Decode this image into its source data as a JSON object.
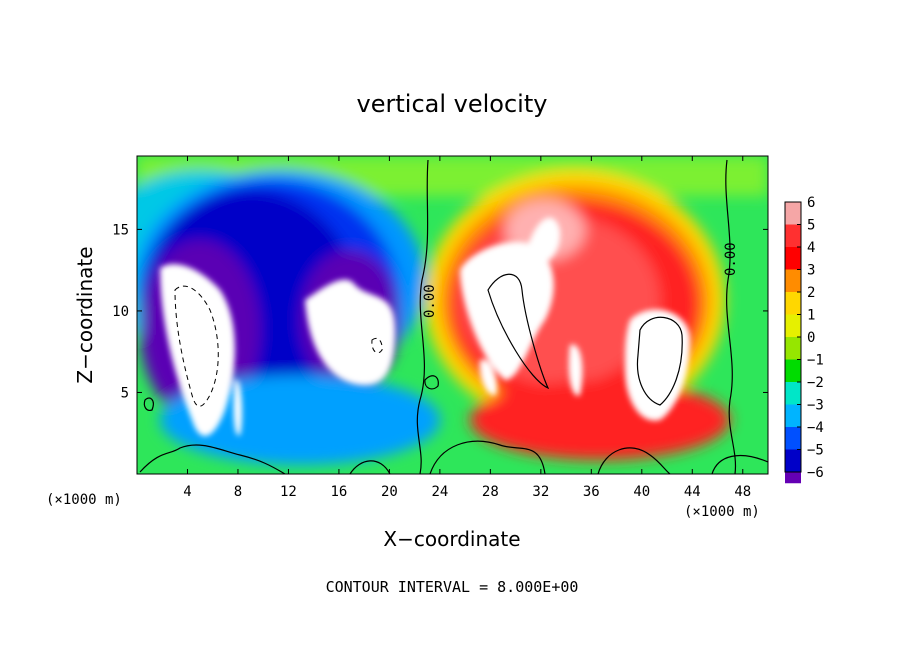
{
  "chart_data": {
    "type": "heatmap",
    "title": "vertical velocity",
    "xlabel": "X−coordinate",
    "ylabel": "Z−coordinate",
    "x_unit": "(×1000 m)",
    "x_unit_right": "(×1000 m)",
    "xlim": [
      0,
      50
    ],
    "ylim": [
      0,
      19.5
    ],
    "x_ticks": [
      4,
      8,
      12,
      16,
      20,
      24,
      28,
      32,
      36,
      40,
      44,
      48
    ],
    "y_ticks": [
      5,
      10,
      15
    ],
    "colorbar": {
      "levels": [
        6,
        5,
        4,
        3,
        2,
        1,
        0,
        -1,
        -2,
        -3,
        -4,
        -5,
        -6
      ],
      "labels": [
        "6",
        "5",
        "4",
        "3",
        "2",
        "1",
        "0",
        "−1",
        "−2",
        "−3",
        "−4",
        "−5",
        "−6"
      ],
      "colors": [
        "#f5a6a6",
        "#ff3030",
        "#ff0000",
        "#ff8c00",
        "#ffd700",
        "#e6f000",
        "#96e600",
        "#00dc00",
        "#00e6c8",
        "#00b4ff",
        "#0050ff",
        "#0000c8",
        "#6400b4"
      ]
    },
    "contour_labels": [
      "0.00",
      "0.00"
    ],
    "contour_interval": "CONTOUR INTERVAL = 8.000E+00"
  }
}
